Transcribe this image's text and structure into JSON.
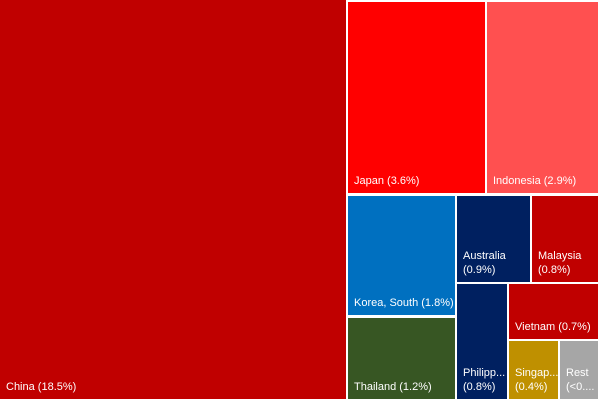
{
  "chart_data": {
    "type": "treemap",
    "items": [
      {
        "name": "China",
        "value": 18.5,
        "label": "China (18.5%)",
        "color": "#C00000"
      },
      {
        "name": "Japan",
        "value": 3.6,
        "label": "Japan (3.6%)",
        "color": "#FF0000"
      },
      {
        "name": "Indonesia",
        "value": 2.9,
        "label": "Indonesia (2.9%)",
        "color": "#FF5050"
      },
      {
        "name": "Korea, South",
        "value": 1.8,
        "label": "Korea, South  (1.8%)",
        "color": "#0070C0"
      },
      {
        "name": "Thailand",
        "value": 1.2,
        "label": "Thailand (1.2%)",
        "color": "#375623"
      },
      {
        "name": "Australia",
        "value": 0.9,
        "label": "Australia\n(0.9%)",
        "color": "#002060"
      },
      {
        "name": "Malaysia",
        "value": 0.8,
        "label": "Malaysia\n(0.8%)",
        "color": "#C00000"
      },
      {
        "name": "Philipp...",
        "value": 0.8,
        "label": "Philipp...\n(0.8%)",
        "color": "#002060"
      },
      {
        "name": "Vietnam",
        "value": 0.7,
        "label": "Vietnam  (0.7%)",
        "color": "#C00000"
      },
      {
        "name": "Singap...",
        "value": 0.4,
        "label": "Singap...\n(0.4%)",
        "color": "#BF9000"
      },
      {
        "name": "Rest",
        "value": null,
        "label": "Rest\n(<0....",
        "color": "#A6A6A6"
      }
    ]
  }
}
